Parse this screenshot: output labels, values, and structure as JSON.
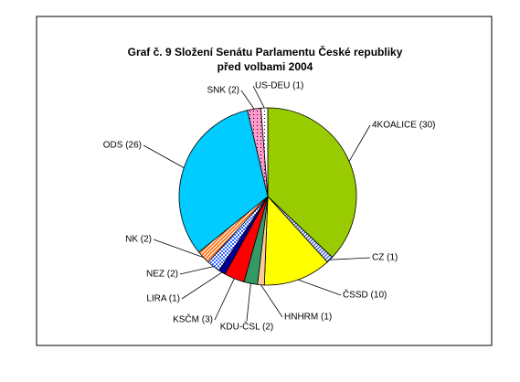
{
  "chart_data": {
    "type": "pie",
    "title": "Graf č. 9 Složení Senátu Parlamentu České republiky",
    "subtitle": "před volbami 2004",
    "values": [
      30,
      1,
      10,
      1,
      2,
      3,
      1,
      2,
      2,
      26,
      2,
      1
    ],
    "value_labels": [
      "4KOALICE (30)",
      "CZ (1)",
      "ČSSD (10)",
      "HNHRM (1)",
      "KDU-ČSL (2)",
      "KSČM (3)",
      "LIRA (1)",
      "NEZ (2)",
      "NK (2)",
      "ODS (26)",
      "SNK (2)",
      "US-DEU (1)"
    ],
    "colors": [
      "#99cc00",
      "#3355cc",
      "#ffff00",
      "#ffcc99",
      "#339966",
      "#ff0000",
      "#000099",
      "#3366ff",
      "#ff6600",
      "#00ccff",
      "#ff99cc",
      "#ffffff"
    ]
  }
}
